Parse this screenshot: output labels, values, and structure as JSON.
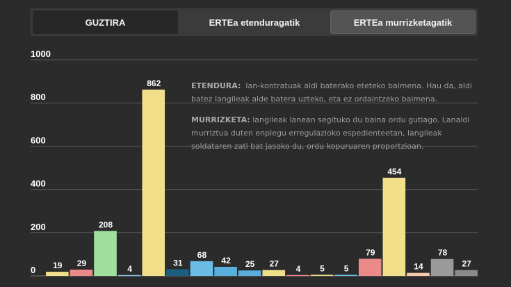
{
  "tabs": [
    {
      "label": "GUZTIRA",
      "active": true
    },
    {
      "label": "ERTEa etenduragatik",
      "active": false
    },
    {
      "label": "ERTEa murrizketagatik",
      "active": false
    }
  ],
  "info": {
    "etendura_term": "ETENDURA:",
    "etendura_text": "lan-kontratuak aldi baterako eteteko baimena. Hau da, aldi batez langileak alde batera uzteko, eta ez ordaintzeko baimena.",
    "murrizketa_term": "MURRIZKETA:",
    "murrizketa_text": "langileak lanean segituko du baina ordu gutiago. Lanaldi murriztua duten enplegu erregulazioko espedienteetan, langileak soldataren zati bat jasoko du, ordu kopuruaren proportzioan."
  },
  "chart_data": {
    "type": "bar",
    "yticks": [
      0,
      200,
      400,
      600,
      800,
      1000
    ],
    "ylim": [
      0,
      1000
    ],
    "grid": true,
    "values": [
      19,
      29,
      208,
      4,
      862,
      31,
      68,
      42,
      25,
      27,
      4,
      5,
      5,
      79,
      454,
      14,
      78,
      27
    ],
    "colors": [
      "#f2df8a",
      "#ec8a8a",
      "#9fe09f",
      "#8cbfe6",
      "#f2df8a",
      "#1c5f7e",
      "#6cbde6",
      "#5aaedc",
      "#5aaedc",
      "#f2df8a",
      "#ec8a8a",
      "#f2df8a",
      "#6cbde6",
      "#ec8a8a",
      "#f2df8a",
      "#f2c8a8",
      "#9a9a9a",
      "#8a8a8a"
    ]
  }
}
